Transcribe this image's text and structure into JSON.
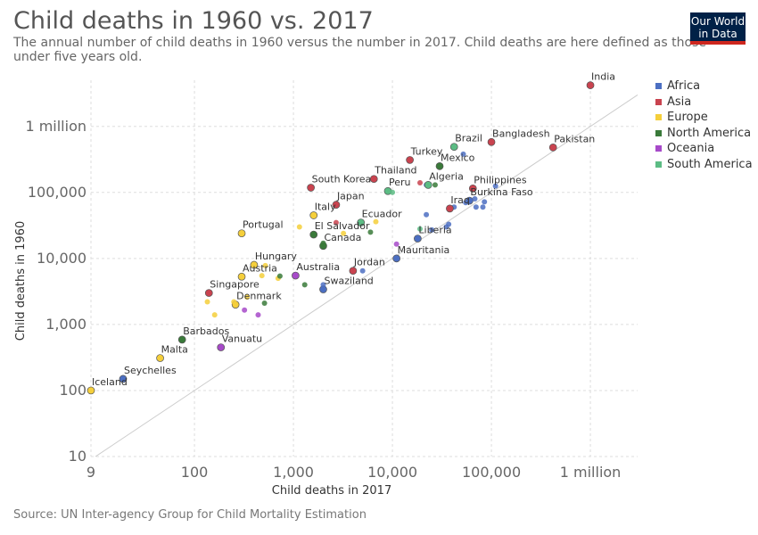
{
  "logo_text": "Our World in Data",
  "chart_data": {
    "type": "scatter",
    "title": "Child deaths in 1960 vs. 2017",
    "subtitle": "The annual number of child deaths in 1960 versus the number in 2017. Child deaths are here defined as those under five years old.",
    "xlabel": "Child deaths in 2017",
    "ylabel": "Child deaths in 1960",
    "source": "Source: UN Inter-agency Group for Child Mortality Estimation",
    "scale": "log",
    "xlim": [
      9,
      3000000
    ],
    "ylim": [
      10,
      5000000
    ],
    "x_ticks": [
      {
        "v": 9,
        "label": "9"
      },
      {
        "v": 100,
        "label": "100"
      },
      {
        "v": 1000,
        "label": "1,000"
      },
      {
        "v": 10000,
        "label": "10,000"
      },
      {
        "v": 100000,
        "label": "100,000"
      },
      {
        "v": 1000000,
        "label": "1 million"
      }
    ],
    "y_ticks": [
      {
        "v": 10,
        "label": "10"
      },
      {
        "v": 100,
        "label": "100"
      },
      {
        "v": 1000,
        "label": "1,000"
      },
      {
        "v": 10000,
        "label": "10,000"
      },
      {
        "v": 100000,
        "label": "100,000"
      },
      {
        "v": 1000000,
        "label": "1 million"
      }
    ],
    "grid": true,
    "diagonal_line": true,
    "legend_position": "right",
    "colors": {
      "Africa": "#4c6fc2",
      "Asia": "#c9434f",
      "Europe": "#f5cf3b",
      "North America": "#3a7a3a",
      "Oceania": "#a74ac9",
      "South America": "#5cbc84"
    },
    "series": [
      {
        "name": "Africa",
        "points": [
          {
            "label": "Seychelles",
            "x": 19,
            "y": 150
          },
          {
            "label": "Swaziland",
            "x": 2000,
            "y": 3400
          },
          {
            "label": "Mauritania",
            "x": 11000,
            "y": 10000
          },
          {
            "label": "Liberia",
            "x": 18000,
            "y": 20000
          },
          {
            "label": "Burkina Faso",
            "x": 60000,
            "y": 75000
          },
          {
            "label": "",
            "x": 2000,
            "y": 4000
          },
          {
            "label": "",
            "x": 5000,
            "y": 6500
          },
          {
            "label": "",
            "x": 22000,
            "y": 46000
          },
          {
            "label": "",
            "x": 25000,
            "y": 27000
          },
          {
            "label": "",
            "x": 35000,
            "y": 30000
          },
          {
            "label": "",
            "x": 37000,
            "y": 33000
          },
          {
            "label": "",
            "x": 42000,
            "y": 60000
          },
          {
            "label": "",
            "x": 55000,
            "y": 70000
          },
          {
            "label": "",
            "x": 68000,
            "y": 80000
          },
          {
            "label": "",
            "x": 70000,
            "y": 60000
          },
          {
            "label": "",
            "x": 82000,
            "y": 60000
          },
          {
            "label": "",
            "x": 85000,
            "y": 72000
          },
          {
            "label": "",
            "x": 52000,
            "y": 380000
          },
          {
            "label": "",
            "x": 110000,
            "y": 125000
          },
          {
            "label": "",
            "x": 22000,
            "y": 130000
          }
        ]
      },
      {
        "name": "Asia",
        "points": [
          {
            "label": "India",
            "x": 1000000,
            "y": 4200000
          },
          {
            "label": "Pakistan",
            "x": 420000,
            "y": 480000
          },
          {
            "label": "Bangladesh",
            "x": 100000,
            "y": 580000
          },
          {
            "label": "Turkey",
            "x": 15000,
            "y": 310000
          },
          {
            "label": "Thailand",
            "x": 6500,
            "y": 160000
          },
          {
            "label": "South Korea",
            "x": 1500,
            "y": 118000
          },
          {
            "label": "Japan",
            "x": 2700,
            "y": 65000
          },
          {
            "label": "Iraq",
            "x": 38000,
            "y": 57000
          },
          {
            "label": "Philippines",
            "x": 65000,
            "y": 115000
          },
          {
            "label": "Jordan",
            "x": 4000,
            "y": 6500
          },
          {
            "label": "Singapore",
            "x": 140,
            "y": 3000
          },
          {
            "label": "",
            "x": 19000,
            "y": 140000
          },
          {
            "label": "",
            "x": 2700,
            "y": 35000
          }
        ]
      },
      {
        "name": "Europe",
        "points": [
          {
            "label": "Iceland",
            "x": 9,
            "y": 100
          },
          {
            "label": "Malta",
            "x": 45,
            "y": 310
          },
          {
            "label": "Portugal",
            "x": 300,
            "y": 24000
          },
          {
            "label": "Italy",
            "x": 1600,
            "y": 45000
          },
          {
            "label": "Hungary",
            "x": 400,
            "y": 8000
          },
          {
            "label": "Austria",
            "x": 300,
            "y": 5300
          },
          {
            "label": "Denmark",
            "x": 260,
            "y": 2000
          },
          {
            "label": "",
            "x": 135,
            "y": 2200
          },
          {
            "label": "",
            "x": 160,
            "y": 1400
          },
          {
            "label": "",
            "x": 250,
            "y": 2200
          },
          {
            "label": "",
            "x": 340,
            "y": 2600
          },
          {
            "label": "",
            "x": 480,
            "y": 5500
          },
          {
            "label": "",
            "x": 700,
            "y": 5000
          },
          {
            "label": "",
            "x": 520,
            "y": 7800
          },
          {
            "label": "",
            "x": 1150,
            "y": 30000
          },
          {
            "label": "",
            "x": 3200,
            "y": 24000
          },
          {
            "label": "",
            "x": 6800,
            "y": 36000
          }
        ]
      },
      {
        "name": "North America",
        "points": [
          {
            "label": "Mexico",
            "x": 30000,
            "y": 250000
          },
          {
            "label": "El Salvador",
            "x": 1600,
            "y": 23000
          },
          {
            "label": "Canada",
            "x": 2000,
            "y": 15500
          },
          {
            "label": "Barbados",
            "x": 75,
            "y": 590
          },
          {
            "label": "",
            "x": 510,
            "y": 2100
          },
          {
            "label": "",
            "x": 730,
            "y": 5400
          },
          {
            "label": "",
            "x": 1300,
            "y": 4000
          },
          {
            "label": "",
            "x": 6000,
            "y": 25000
          },
          {
            "label": "",
            "x": 27000,
            "y": 130000
          },
          {
            "label": "",
            "x": 2000,
            "y": 17000
          }
        ]
      },
      {
        "name": "Oceania",
        "points": [
          {
            "label": "Australia",
            "x": 1050,
            "y": 5500
          },
          {
            "label": "Vanuatu",
            "x": 185,
            "y": 450
          },
          {
            "label": "",
            "x": 320,
            "y": 1650
          },
          {
            "label": "",
            "x": 440,
            "y": 1400
          },
          {
            "label": "",
            "x": 11000,
            "y": 16500
          }
        ]
      },
      {
        "name": "South America",
        "points": [
          {
            "label": "Brazil",
            "x": 42000,
            "y": 490000
          },
          {
            "label": "Peru",
            "x": 9000,
            "y": 105000
          },
          {
            "label": "Ecuador",
            "x": 4800,
            "y": 35000
          },
          {
            "label": "Algeria",
            "x": 23000,
            "y": 130000
          },
          {
            "label": "",
            "x": 10000,
            "y": 100000
          },
          {
            "label": "",
            "x": 19000,
            "y": 28000
          }
        ]
      }
    ]
  }
}
